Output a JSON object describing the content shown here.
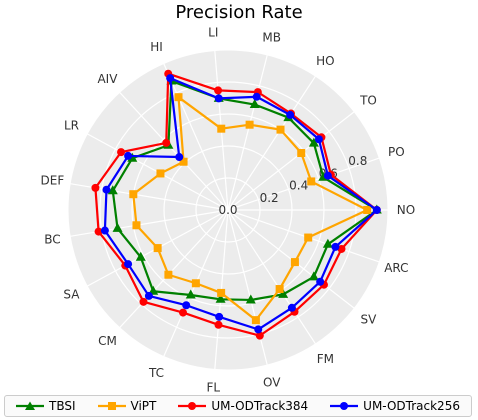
{
  "chart_data": {
    "type": "radar",
    "title": "Precision Rate",
    "axes": [
      "NO",
      "PO",
      "TO",
      "HO",
      "MB",
      "LI",
      "HI",
      "AIV",
      "LR",
      "DEF",
      "BC",
      "SA",
      "CM",
      "TC",
      "FL",
      "OV",
      "FM",
      "SV",
      "ARC"
    ],
    "rlim": [
      0,
      1.0
    ],
    "rticks": [
      0.0,
      0.2,
      0.4,
      0.6,
      0.8
    ],
    "rtick_labels": [
      "0.0",
      "0.2",
      "0.4",
      "0.6",
      "0.8"
    ],
    "grid": true,
    "legend_position": "bottom",
    "series": [
      {
        "name": "TBSI",
        "color": "#008000",
        "marker": "triangle",
        "values": [
          0.93,
          0.63,
          0.68,
          0.69,
          0.68,
          0.7,
          0.88,
          0.55,
          0.68,
          0.73,
          0.7,
          0.62,
          0.69,
          0.58,
          0.56,
          0.58,
          0.63,
          0.68,
          0.66
        ]
      },
      {
        "name": "ViPT",
        "color": "#FFA500",
        "marker": "square",
        "values": [
          0.87,
          0.55,
          0.58,
          0.6,
          0.55,
          0.51,
          0.77,
          0.41,
          0.48,
          0.6,
          0.58,
          0.5,
          0.55,
          0.5,
          0.52,
          0.71,
          0.59,
          0.53,
          0.53
        ]
      },
      {
        "name": "UM-ODTrack384",
        "color": "#FF0000",
        "marker": "circle",
        "values": [
          0.93,
          0.68,
          0.74,
          0.72,
          0.76,
          0.75,
          0.93,
          0.57,
          0.76,
          0.84,
          0.82,
          0.73,
          0.78,
          0.7,
          0.72,
          0.81,
          0.76,
          0.76,
          0.75
        ]
      },
      {
        "name": "UM-ODTrack256",
        "color": "#0000FF",
        "marker": "circle",
        "values": [
          0.93,
          0.66,
          0.72,
          0.71,
          0.73,
          0.7,
          0.9,
          0.45,
          0.71,
          0.77,
          0.78,
          0.71,
          0.73,
          0.65,
          0.67,
          0.77,
          0.73,
          0.73,
          0.71
        ]
      }
    ]
  }
}
